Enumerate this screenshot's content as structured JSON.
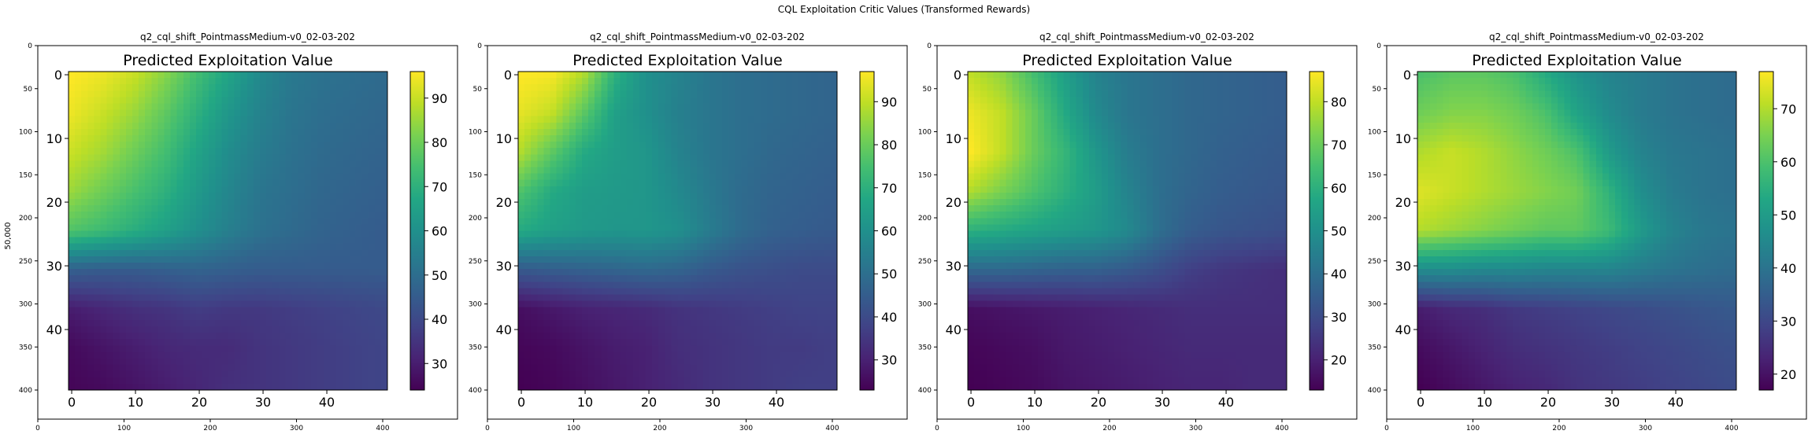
{
  "figure": {
    "suptitle": "CQL Exploitation Critic Values (Transformed Rewards)",
    "ylabel": "50,000"
  },
  "chart_data": [
    {
      "type": "heatmap",
      "subplot_title": "q2_cql_shift_PointmassMedium-v0_02-03-202",
      "title": "Predicted Exploitation Value",
      "colormap": "viridis",
      "colorbar_range": [
        24,
        96
      ],
      "colorbar_ticks": [
        "30",
        "40",
        "50",
        "60",
        "70",
        "80",
        "90"
      ],
      "grid": [
        [
          96,
          94,
          90,
          83,
          74,
          66,
          58,
          53,
          51,
          50,
          49
        ],
        [
          94,
          90,
          85,
          78,
          70,
          62,
          56,
          52,
          50,
          49,
          48
        ],
        [
          90,
          86,
          80,
          74,
          66,
          59,
          54,
          51,
          49,
          48,
          47
        ],
        [
          85,
          80,
          75,
          70,
          63,
          57,
          52,
          50,
          48,
          47,
          46
        ],
        [
          76,
          73,
          69,
          65,
          60,
          55,
          51,
          49,
          47,
          46,
          45
        ],
        [
          46,
          45,
          45,
          46,
          47,
          46,
          45,
          45,
          45,
          45,
          45
        ],
        [
          30,
          32,
          34,
          35,
          37,
          36,
          36,
          37,
          38,
          39,
          40
        ],
        [
          26,
          28,
          30,
          32,
          33,
          33,
          35,
          36,
          37,
          38,
          39
        ],
        [
          25,
          26,
          28,
          30,
          32,
          34,
          35,
          36,
          37,
          38,
          39
        ]
      ]
    },
    {
      "type": "heatmap",
      "subplot_title": "q2_cql_shift_PointmassMedium-v0_02-03-202",
      "title": "Predicted Exploitation Value",
      "colormap": "viridis",
      "colorbar_range": [
        23,
        97
      ],
      "colorbar_ticks": [
        "30",
        "40",
        "50",
        "60",
        "70",
        "80",
        "90"
      ],
      "grid": [
        [
          97,
          96,
          88,
          70,
          60,
          56,
          52,
          50,
          49,
          48,
          47
        ],
        [
          94,
          90,
          78,
          65,
          60,
          55,
          52,
          50,
          49,
          48,
          47
        ],
        [
          88,
          78,
          68,
          64,
          62,
          56,
          52,
          50,
          48,
          47,
          46
        ],
        [
          76,
          68,
          64,
          63,
          62,
          58,
          53,
          49,
          47,
          46,
          45
        ],
        [
          68,
          65,
          63,
          62,
          62,
          60,
          54,
          49,
          46,
          45,
          44
        ],
        [
          44,
          45,
          46,
          47,
          48,
          47,
          44,
          42,
          41,
          40,
          40
        ],
        [
          26,
          28,
          30,
          31,
          32,
          34,
          35,
          36,
          37,
          38,
          38
        ],
        [
          24,
          25,
          27,
          29,
          30,
          33,
          34,
          35,
          36,
          36,
          37
        ],
        [
          23,
          24,
          26,
          28,
          30,
          32,
          34,
          35,
          36,
          37,
          37
        ]
      ]
    },
    {
      "type": "heatmap",
      "subplot_title": "q2_cql_shift_PointmassMedium-v0_02-03-202",
      "title": "Predicted Exploitation Value",
      "colormap": "viridis",
      "colorbar_range": [
        13,
        87
      ],
      "colorbar_ticks": [
        "20",
        "30",
        "40",
        "50",
        "60",
        "70",
        "80"
      ],
      "grid": [
        [
          80,
          75,
          65,
          55,
          46,
          42,
          40,
          38,
          37,
          36,
          35
        ],
        [
          85,
          80,
          70,
          58,
          48,
          42,
          40,
          38,
          37,
          36,
          35
        ],
        [
          87,
          80,
          70,
          62,
          52,
          44,
          40,
          38,
          36,
          35,
          34
        ],
        [
          78,
          72,
          66,
          60,
          54,
          46,
          40,
          37,
          35,
          34,
          33
        ],
        [
          60,
          58,
          56,
          54,
          52,
          48,
          40,
          35,
          33,
          32,
          31
        ],
        [
          38,
          38,
          37,
          36,
          36,
          34,
          31,
          27,
          25,
          24,
          23
        ],
        [
          16,
          17,
          18,
          19,
          20,
          21,
          22,
          23,
          23,
          23,
          23
        ],
        [
          14,
          15,
          16,
          18,
          19,
          20,
          21,
          22,
          22,
          22,
          22
        ],
        [
          13,
          14,
          15,
          17,
          18,
          19,
          20,
          21,
          21,
          22,
          22
        ]
      ]
    },
    {
      "type": "heatmap",
      "subplot_title": "q2_cql_shift_PointmassMedium-v0_02-03-202",
      "title": "Predicted Exploitation Value",
      "colormap": "viridis",
      "colorbar_range": [
        17,
        77
      ],
      "colorbar_ticks": [
        "20",
        "30",
        "40",
        "50",
        "60",
        "70"
      ],
      "grid": [
        [
          60,
          62,
          62,
          60,
          54,
          48,
          44,
          42,
          40,
          39,
          38
        ],
        [
          64,
          66,
          66,
          64,
          60,
          52,
          46,
          42,
          40,
          39,
          38
        ],
        [
          70,
          72,
          70,
          67,
          64,
          60,
          50,
          44,
          41,
          40,
          39
        ],
        [
          74,
          72,
          70,
          68,
          66,
          64,
          56,
          47,
          42,
          40,
          39
        ],
        [
          70,
          68,
          66,
          64,
          62,
          62,
          58,
          50,
          44,
          41,
          40
        ],
        [
          46,
          46,
          45,
          45,
          44,
          44,
          44,
          42,
          40,
          39,
          38
        ],
        [
          22,
          24,
          25,
          27,
          28,
          29,
          30,
          31,
          32,
          33,
          34
        ],
        [
          19,
          21,
          23,
          25,
          26,
          27,
          28,
          29,
          30,
          31,
          32
        ],
        [
          17,
          19,
          21,
          23,
          24,
          26,
          27,
          28,
          29,
          30,
          31
        ]
      ]
    }
  ],
  "axes_ticks": {
    "outer_x": [
      "0",
      "100",
      "200",
      "300",
      "400"
    ],
    "outer_y": [
      "0",
      "50",
      "100",
      "150",
      "200",
      "250",
      "300",
      "350",
      "400"
    ],
    "inner_x": [
      "0",
      "10",
      "20",
      "30",
      "40"
    ],
    "inner_y": [
      "0",
      "10",
      "20",
      "30",
      "40"
    ]
  }
}
